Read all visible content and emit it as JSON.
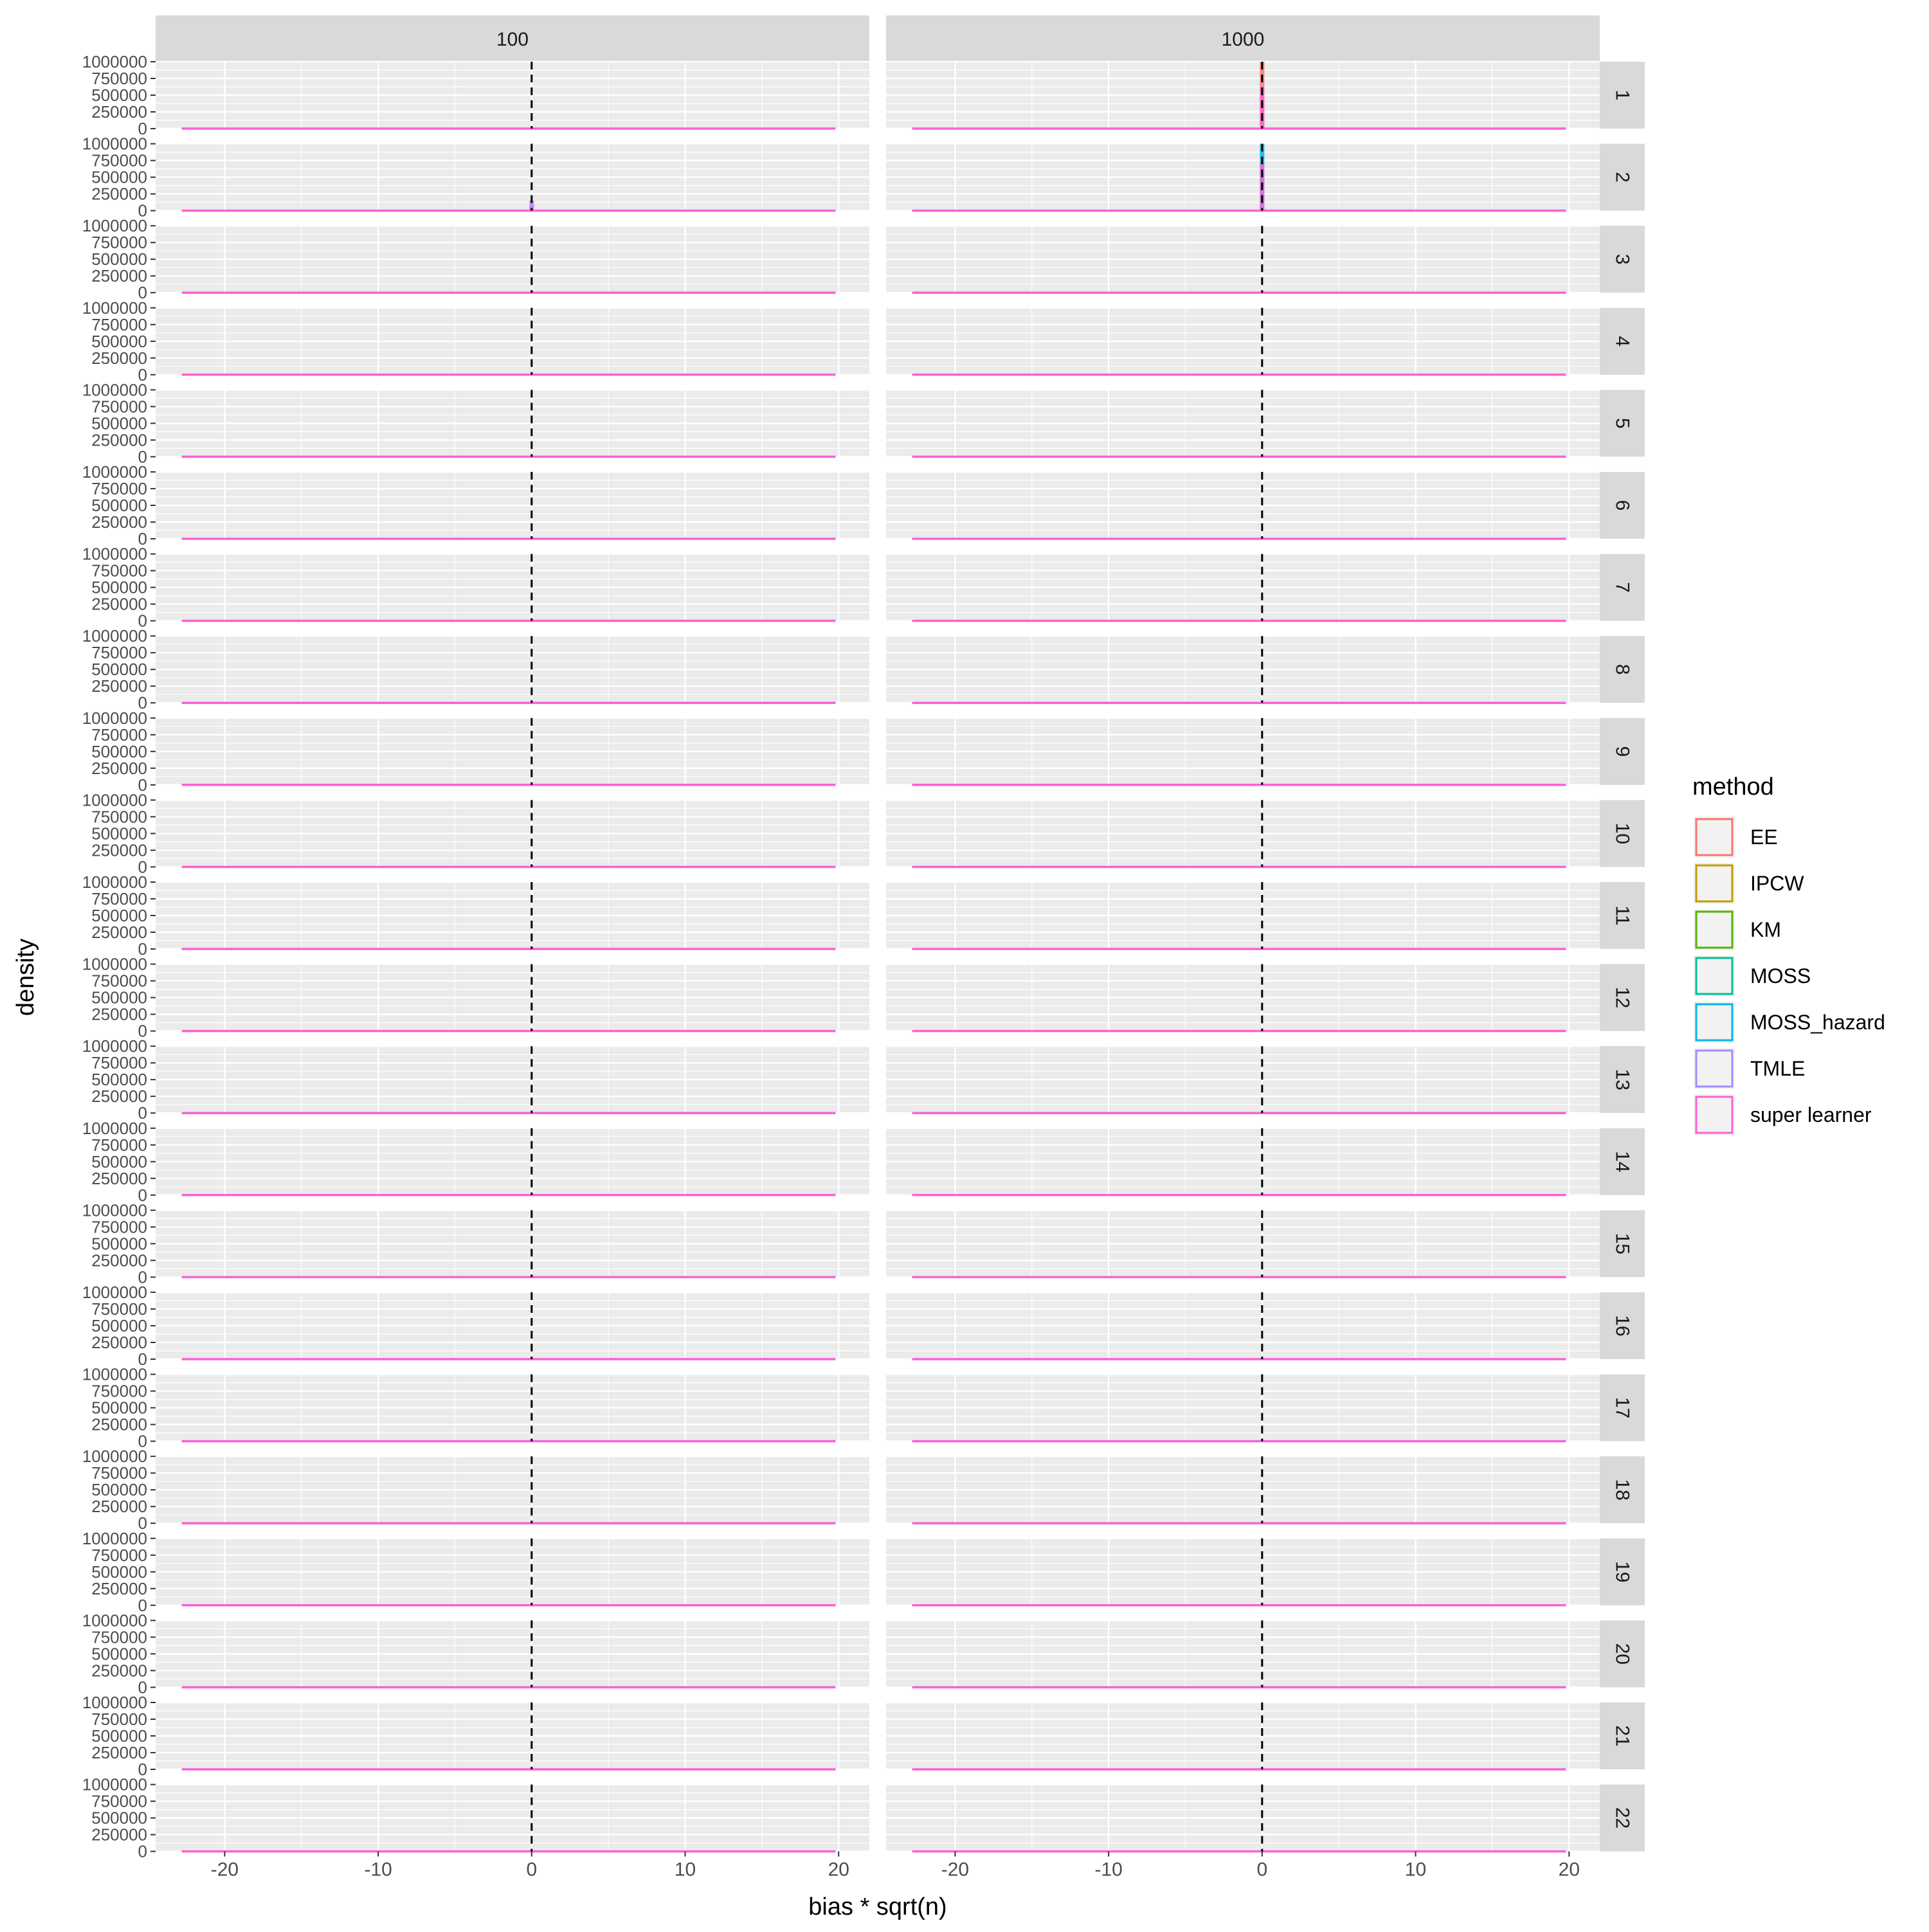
{
  "chart_data": {
    "type": "area",
    "facet_cols": [
      "100",
      "1000"
    ],
    "facet_rows": [
      "1",
      "2",
      "3",
      "4",
      "5",
      "6",
      "7",
      "8",
      "9",
      "10",
      "11",
      "12",
      "13",
      "14",
      "15",
      "16",
      "17",
      "18",
      "19",
      "20",
      "21",
      "22"
    ],
    "xlabel": "bias * sqrt(n)",
    "ylabel": "density",
    "xlim": [
      -24.5,
      22
    ],
    "ylim": [
      0,
      1000000
    ],
    "x_ticks": [
      -20,
      -10,
      0,
      10,
      20
    ],
    "x_tick_labels": [
      "-20",
      "-10",
      "0",
      "10",
      "20"
    ],
    "y_ticks": [
      0,
      250000,
      500000,
      750000,
      1000000
    ],
    "y_tick_labels": [
      "0",
      "250000",
      "500000",
      "750000",
      "1000000"
    ],
    "reference_line": {
      "x": 0,
      "style": "dashed",
      "color": "#000000"
    },
    "density_range": [
      -22.8,
      19.8
    ],
    "legend": {
      "title": "method",
      "position": "right",
      "entries": [
        {
          "label": "EE",
          "color": "#F8766D"
        },
        {
          "label": "IPCW",
          "color": "#C49A00"
        },
        {
          "label": "KM",
          "color": "#53B400"
        },
        {
          "label": "MOSS",
          "color": "#00C094"
        },
        {
          "label": "MOSS_hazard",
          "color": "#00B6EB"
        },
        {
          "label": "TMLE",
          "color": "#A58AFF"
        },
        {
          "label": "super learner",
          "color": "#FB61D7"
        }
      ]
    },
    "spikes": [
      {
        "col": "1000",
        "row": "1",
        "x": 0,
        "series": "EE",
        "peak": 1000000
      },
      {
        "col": "1000",
        "row": "1",
        "x": 0,
        "series": "super learner",
        "peak": 620000
      },
      {
        "col": "100",
        "row": "2",
        "x": 0,
        "series": "TMLE",
        "peak": 150000
      },
      {
        "col": "100",
        "row": "2",
        "x": 0,
        "series": "super learner",
        "peak": 60000
      },
      {
        "col": "1000",
        "row": "2",
        "x": 0,
        "series": "MOSS_hazard",
        "peak": 1000000
      },
      {
        "col": "1000",
        "row": "2",
        "x": 0,
        "series": "super learner",
        "peak": 700000
      }
    ],
    "grid": true,
    "panel_background": "#EBEBEB",
    "strip_background": "#D9D9D9"
  }
}
